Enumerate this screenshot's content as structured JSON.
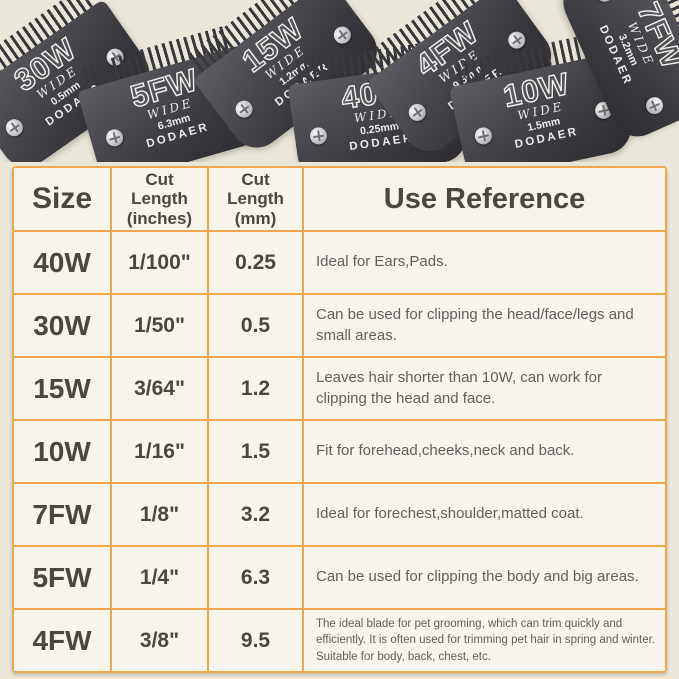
{
  "colors": {
    "page_background": "#eae6da",
    "table_border": "#efa64d",
    "cell_background": "#f7f4eb",
    "heading_text": "#4d4640",
    "body_text": "#606060",
    "blade_dark": "#38383d"
  },
  "hero": {
    "blades": [
      {
        "size": "30W",
        "wide": "WIDE",
        "mm": "0.5mm",
        "brand": "DODAER"
      },
      {
        "size": "5FW",
        "wide": "WIDE",
        "mm": "6.3mm",
        "brand": "DODAER"
      },
      {
        "size": "15W",
        "wide": "WIDE",
        "mm": "1.2mm",
        "brand": "DODAER"
      },
      {
        "size": "40W",
        "wide": "WIDE",
        "mm": "0.25mm",
        "brand": "DODAER"
      },
      {
        "size": "4FW",
        "wide": "WIDE",
        "mm": "9.5mm",
        "brand": "DODAER"
      },
      {
        "size": "10W",
        "wide": "WIDE",
        "mm": "1.5mm",
        "brand": "DODAER"
      },
      {
        "size": "7FW",
        "wide": "WIDE",
        "mm": "3.2mm",
        "brand": "DODAER"
      }
    ]
  },
  "table": {
    "headers": {
      "size": "Size",
      "inches_lines": [
        "Cut",
        "Length",
        "(inches)"
      ],
      "mm_lines": [
        "Cut",
        "Length",
        "(mm)"
      ],
      "use": "Use Reference"
    },
    "rows": [
      {
        "size": "40W",
        "inches": "1/100\"",
        "mm": "0.25",
        "use": "Ideal for Ears,Pads."
      },
      {
        "size": "30W",
        "inches": "1/50\"",
        "mm": "0.5",
        "use": "Can be used for clipping the head/face/legs and small areas."
      },
      {
        "size": "15W",
        "inches": "3/64\"",
        "mm": "1.2",
        "use": "Leaves hair shorter than 10W, can work for clipping the head and face."
      },
      {
        "size": "10W",
        "inches": "1/16\"",
        "mm": "1.5",
        "use": "Fit for forehead,cheeks,neck and back."
      },
      {
        "size": "7FW",
        "inches": "1/8\"",
        "mm": "3.2",
        "use": "Ideal for forechest,shoulder,matted coat."
      },
      {
        "size": "5FW",
        "inches": "1/4\"",
        "mm": "6.3",
        "use": "Can be used for clipping the body and big areas."
      },
      {
        "size": "4FW",
        "inches": "3/8\"",
        "mm": "9.5",
        "use": "The ideal blade for pet grooming, which can trim quickly and efficiently. It is often used for trimming pet hair in spring and winter. Suitable for body, back, chest, etc."
      }
    ]
  }
}
